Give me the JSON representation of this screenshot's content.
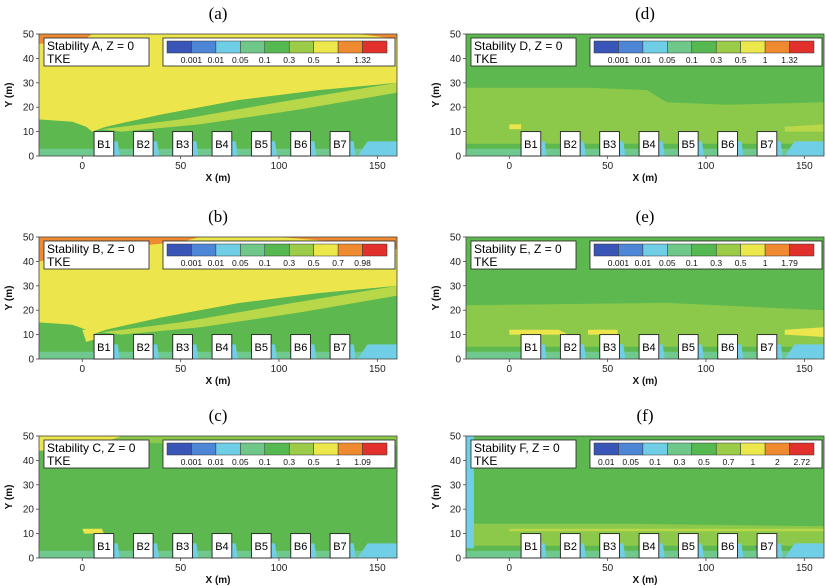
{
  "chart_data": [
    {
      "type": "contour",
      "panel_label": "(a)",
      "title_line1": "Stability A, Z = 0",
      "title_line2": "TKE",
      "xlabel": "X (m)",
      "ylabel": "Y (m)",
      "xlim": [
        -22,
        160
      ],
      "ylim": [
        0,
        50
      ],
      "x_ticks": [
        0,
        50,
        100,
        150
      ],
      "y_ticks": [
        0,
        10,
        20,
        30,
        40,
        50
      ],
      "legend_levels": [
        "0.001",
        "0.01",
        "0.05",
        "0.1",
        "0.3",
        "0.5",
        "1",
        "1.32"
      ],
      "buildings": [
        "B1",
        "B2",
        "B3",
        "B4",
        "B5",
        "B6",
        "B7"
      ],
      "regime": "A"
    },
    {
      "type": "contour",
      "panel_label": "(b)",
      "title_line1": "Stability B, Z = 0",
      "title_line2": "TKE",
      "xlabel": "X (m)",
      "ylabel": "Y (m)",
      "xlim": [
        -22,
        160
      ],
      "ylim": [
        0,
        50
      ],
      "x_ticks": [
        0,
        50,
        100,
        150
      ],
      "y_ticks": [
        0,
        10,
        20,
        30,
        40,
        50
      ],
      "legend_levels": [
        "0.001",
        "0.01",
        "0.05",
        "0.1",
        "0.3",
        "0.5",
        "0.7",
        "0.98"
      ],
      "buildings": [
        "B1",
        "B2",
        "B3",
        "B4",
        "B5",
        "B6",
        "B7"
      ],
      "regime": "B"
    },
    {
      "type": "contour",
      "panel_label": "(c)",
      "title_line1": "Stability C, Z = 0",
      "title_line2": "TKE",
      "xlabel": "X (m)",
      "ylabel": "Y (m)",
      "xlim": [
        -22,
        160
      ],
      "ylim": [
        0,
        50
      ],
      "x_ticks": [
        0,
        50,
        100,
        150
      ],
      "y_ticks": [
        0,
        10,
        20,
        30,
        40,
        50
      ],
      "legend_levels": [
        "0.001",
        "0.01",
        "0.05",
        "0.1",
        "0.3",
        "0.5",
        "1",
        "1.09"
      ],
      "buildings": [
        "B1",
        "B2",
        "B3",
        "B4",
        "B5",
        "B6",
        "B7"
      ],
      "regime": "C"
    },
    {
      "type": "contour",
      "panel_label": "(d)",
      "title_line1": "Stability D, Z = 0",
      "title_line2": "TKE",
      "xlabel": "X (m)",
      "ylabel": "Y (m)",
      "xlim": [
        -22,
        160
      ],
      "ylim": [
        0,
        50
      ],
      "x_ticks": [
        0,
        50,
        100,
        150
      ],
      "y_ticks": [
        0,
        10,
        20,
        30,
        40,
        50
      ],
      "legend_levels": [
        "0.001",
        "0.01",
        "0.05",
        "0.1",
        "0.3",
        "0.5",
        "1",
        "1.32"
      ],
      "buildings": [
        "B1",
        "B2",
        "B3",
        "B4",
        "B5",
        "B6",
        "B7"
      ],
      "regime": "D"
    },
    {
      "type": "contour",
      "panel_label": "(e)",
      "title_line1": "Stability E, Z = 0",
      "title_line2": "TKE",
      "xlabel": "X (m)",
      "ylabel": "Y (m)",
      "xlim": [
        -22,
        160
      ],
      "ylim": [
        0,
        50
      ],
      "x_ticks": [
        0,
        50,
        100,
        150
      ],
      "y_ticks": [
        0,
        10,
        20,
        30,
        40,
        50
      ],
      "legend_levels": [
        "0.001",
        "0.01",
        "0.05",
        "0.1",
        "0.3",
        "0.5",
        "1",
        "1.79"
      ],
      "buildings": [
        "B1",
        "B2",
        "B3",
        "B4",
        "B5",
        "B6",
        "B7"
      ],
      "regime": "E"
    },
    {
      "type": "contour",
      "panel_label": "(f)",
      "title_line1": "Stability F, Z = 0",
      "title_line2": "TKE",
      "xlabel": "X (m)",
      "ylabel": "Y (m)",
      "xlim": [
        -22,
        160
      ],
      "ylim": [
        0,
        50
      ],
      "x_ticks": [
        0,
        50,
        100,
        150
      ],
      "y_ticks": [
        0,
        10,
        20,
        30,
        40,
        50
      ],
      "legend_levels": [
        "0.01",
        "0.05",
        "0.1",
        "0.3",
        "0.5",
        "0.7",
        "1",
        "2",
        "2.72"
      ],
      "buildings": [
        "B1",
        "B2",
        "B3",
        "B4",
        "B5",
        "B6",
        "B7"
      ],
      "regime": "F"
    }
  ],
  "colors": {
    "legend_scale": [
      "#3a55b8",
      "#4d86d6",
      "#6fcde6",
      "#6fc88a",
      "#56b851",
      "#9ccb48",
      "#ece84c",
      "#f08a30",
      "#e2302c"
    ],
    "field_green": "#5db94f",
    "field_light_green": "#8cc94a",
    "field_yellow_green": "#b8d84a",
    "field_yellow": "#ece64c",
    "field_orange": "#ef8a33",
    "field_cyan": "#70cfe6",
    "field_teal": "#6fc88d",
    "field_blue": "#3f6fcc"
  }
}
